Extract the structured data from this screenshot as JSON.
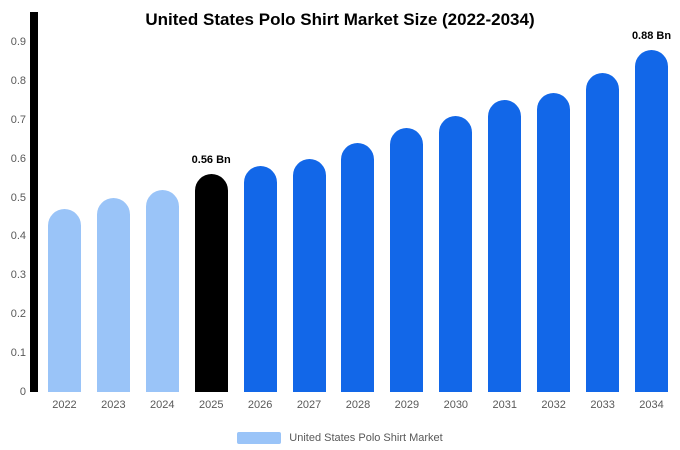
{
  "title": "United States Polo Shirt Market Size (2022-2034)",
  "colors": {
    "light_blue": "#9ac4f8",
    "primary_blue": "#1267e8",
    "highlight_black": "#000000",
    "axis_text": "#595959"
  },
  "legend": {
    "label": "United States Polo Shirt Market",
    "swatch_color": "#9ac4f8"
  },
  "chart_data": {
    "type": "bar",
    "title": "United States Polo Shirt Market Size (2022-2034)",
    "categories": [
      "2022",
      "2023",
      "2024",
      "2025",
      "2026",
      "2027",
      "2028",
      "2029",
      "2030",
      "2031",
      "2032",
      "2033",
      "2034"
    ],
    "values": [
      0.47,
      0.5,
      0.52,
      0.56,
      0.58,
      0.6,
      0.64,
      0.68,
      0.71,
      0.75,
      0.77,
      0.82,
      0.88
    ],
    "unit": "Bn",
    "bar_colors": [
      "#9ac4f8",
      "#9ac4f8",
      "#9ac4f8",
      "#000000",
      "#1267e8",
      "#1267e8",
      "#1267e8",
      "#1267e8",
      "#1267e8",
      "#1267e8",
      "#1267e8",
      "#1267e8",
      "#1267e8"
    ],
    "annotations": [
      {
        "category": "2025",
        "text": "0.56 Bn"
      },
      {
        "category": "2034",
        "text": "0.88 Bn"
      }
    ],
    "ylim": [
      0,
      0.9
    ],
    "ytick_labels": [
      "0",
      "0.1",
      "0.2",
      "0.3",
      "0.4",
      "0.5",
      "0.6",
      "0.7",
      "0.8",
      "0.9"
    ],
    "xlabel": "",
    "ylabel": "",
    "grid": false,
    "legend_position": "bottom",
    "legend_entries": [
      "United States Polo Shirt Market"
    ]
  }
}
